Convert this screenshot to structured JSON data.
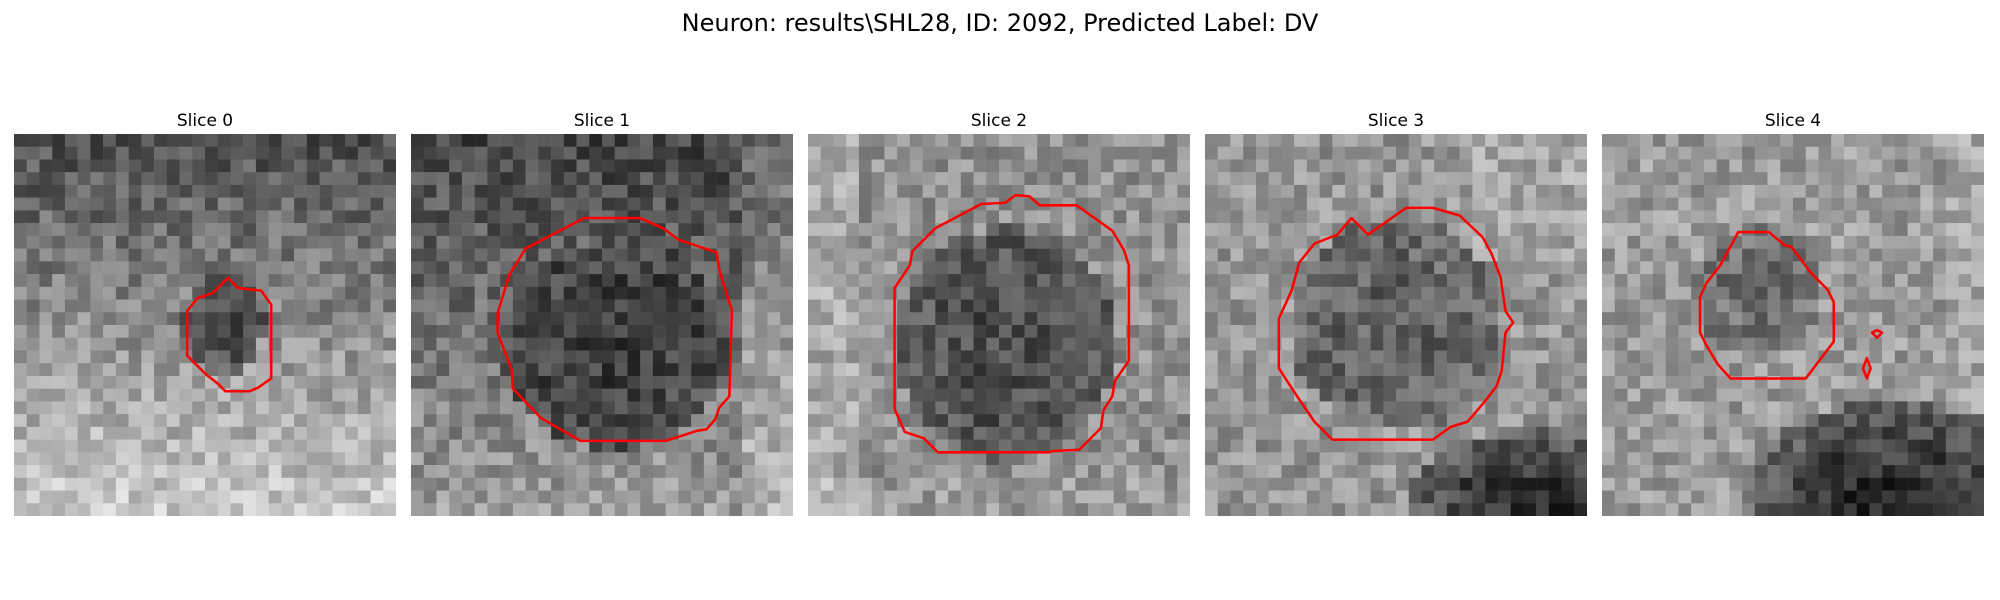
{
  "figure": {
    "suptitle": "Neuron: results\\SHL28, ID: 2092, Predicted Label: DV"
  },
  "colors": {
    "contour": "#ff0000",
    "background": "#ffffff"
  },
  "panels": [
    {
      "title": "Slice 0"
    },
    {
      "title": "Slice 1"
    },
    {
      "title": "Slice 2"
    },
    {
      "title": "Slice 3"
    },
    {
      "title": "Slice 4"
    }
  ]
}
